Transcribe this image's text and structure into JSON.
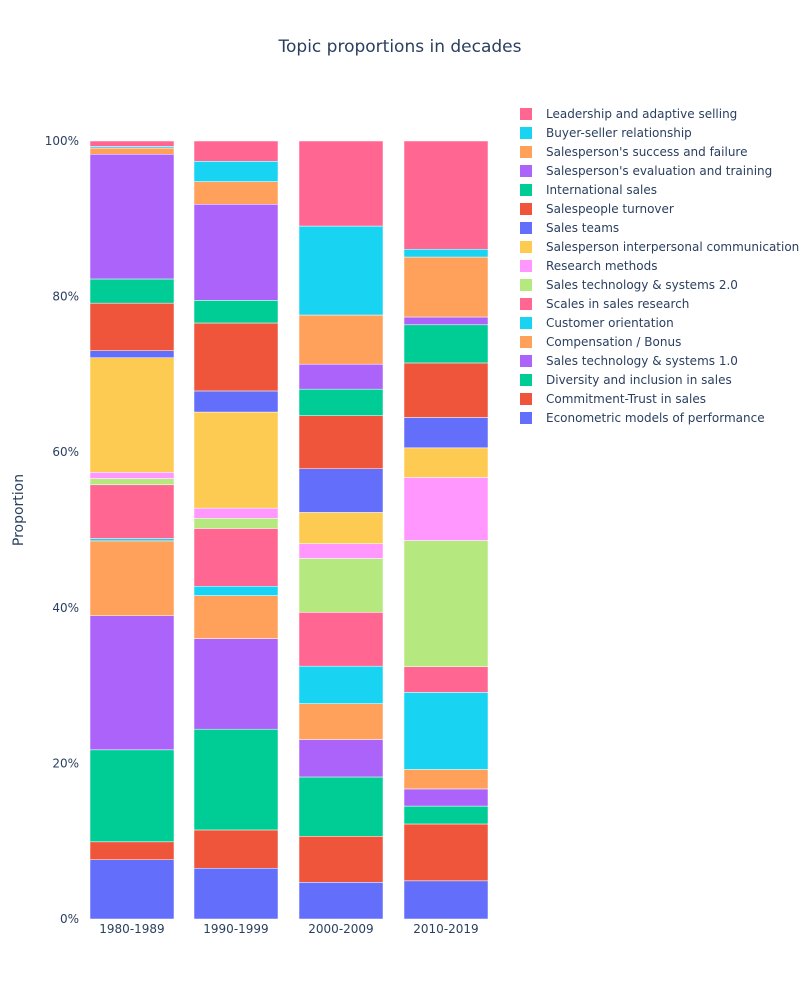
{
  "chart_data": {
    "type": "bar",
    "stacked": true,
    "title": "Topic proportions in decades",
    "xlabel": "",
    "ylabel": "Proportion",
    "ylim": [
      0,
      100
    ],
    "y_tick_values": [
      0,
      20,
      40,
      60,
      80,
      100
    ],
    "y_tick_labels": [
      "0%",
      "20%",
      "40%",
      "60%",
      "80%",
      "100%"
    ],
    "legend_position": "top-right",
    "categories": [
      "1980-1989",
      "1990-1999",
      "2000-2009",
      "2010-2019"
    ],
    "series": [
      {
        "name": "Econometric models of performance",
        "color": "#636efa",
        "values": [
          7.6,
          6.5,
          4.7,
          4.9
        ]
      },
      {
        "name": "Commitment-Trust in sales",
        "color": "#ef553b",
        "values": [
          2.3,
          4.9,
          5.9,
          7.3
        ]
      },
      {
        "name": "Diversity and inclusion in sales",
        "color": "#00cc96",
        "values": [
          11.8,
          12.9,
          7.6,
          2.3
        ]
      },
      {
        "name": "Sales technology & systems 1.0",
        "color": "#ab63fa",
        "values": [
          17.2,
          11.6,
          4.8,
          2.2
        ]
      },
      {
        "name": "Compensation / Bonus",
        "color": "#ffa15a",
        "values": [
          9.6,
          5.5,
          4.6,
          2.5
        ]
      },
      {
        "name": "Customer orientation",
        "color": "#19d3f3",
        "values": [
          0.3,
          1.2,
          4.8,
          9.9
        ]
      },
      {
        "name": "Scales in sales research",
        "color": "#ff6692",
        "values": [
          6.9,
          7.4,
          6.9,
          3.3
        ]
      },
      {
        "name": "Sales technology & systems 2.0",
        "color": "#b6e880",
        "values": [
          0.8,
          1.3,
          6.9,
          16.2
        ]
      },
      {
        "name": "Research methods",
        "color": "#ff97ff",
        "values": [
          0.8,
          1.3,
          1.9,
          8.1
        ]
      },
      {
        "name": "Salesperson interpersonal communication",
        "color": "#fecb52",
        "values": [
          14.7,
          12.3,
          4.0,
          3.8
        ]
      },
      {
        "name": "Sales teams",
        "color": "#636efa",
        "values": [
          0.9,
          2.7,
          5.6,
          3.9
        ]
      },
      {
        "name": "Salespeople turnover",
        "color": "#ef553b",
        "values": [
          6.1,
          8.7,
          6.8,
          7.0
        ]
      },
      {
        "name": "International sales",
        "color": "#00cc96",
        "values": [
          3.1,
          2.9,
          3.4,
          4.9
        ]
      },
      {
        "name": "Salesperson's evaluation and training",
        "color": "#ab63fa",
        "values": [
          16.0,
          12.3,
          3.2,
          1.0
        ]
      },
      {
        "name": "Salesperson's success and failure",
        "color": "#ffa15a",
        "values": [
          0.8,
          2.9,
          6.3,
          7.7
        ]
      },
      {
        "name": "Buyer-seller relationship",
        "color": "#19d3f3",
        "values": [
          0.2,
          2.6,
          11.4,
          1.0
        ]
      },
      {
        "name": "Leadership and adaptive selling",
        "color": "#ff6692",
        "values": [
          0.7,
          2.6,
          10.9,
          13.9
        ]
      }
    ]
  }
}
